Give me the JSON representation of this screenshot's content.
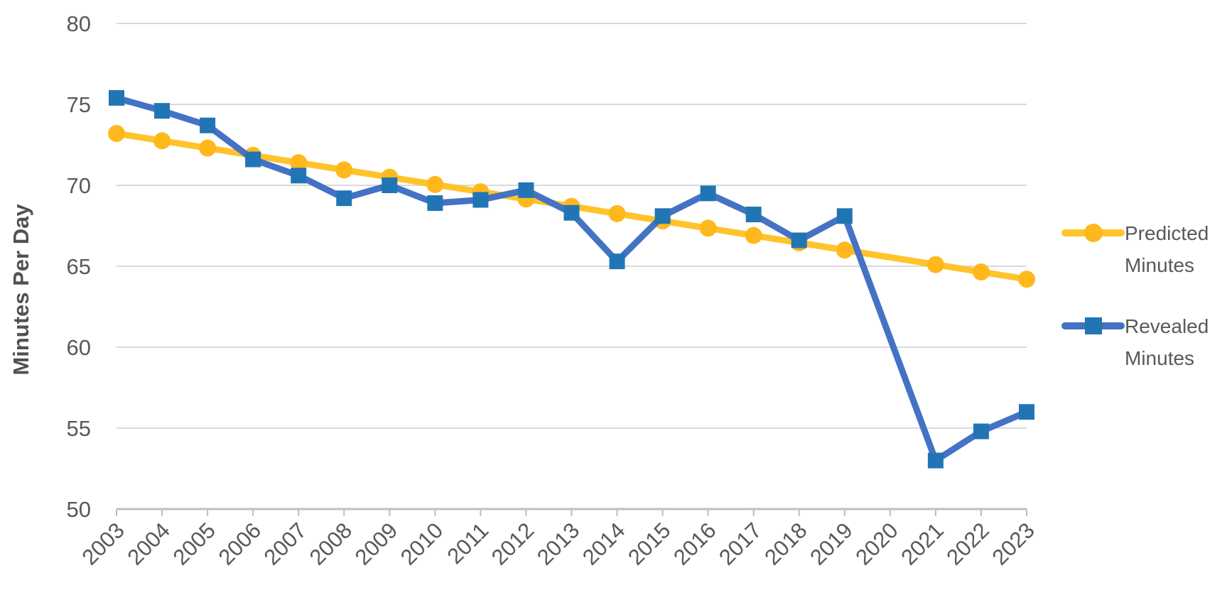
{
  "page": {
    "background": "#ffffff"
  },
  "chart_data": {
    "type": "line",
    "title": "",
    "xlabel": "",
    "ylabel": "Minutes Per Day",
    "ylim": [
      50,
      80
    ],
    "yticks": [
      50,
      55,
      60,
      65,
      70,
      75,
      80
    ],
    "grid": "horizontal",
    "legend_position": "right",
    "categories": [
      "2003",
      "2004",
      "2005",
      "2006",
      "2007",
      "2008",
      "2009",
      "2010",
      "2011",
      "2012",
      "2013",
      "2014",
      "2015",
      "2016",
      "2017",
      "2018",
      "2019",
      "2020",
      "2021",
      "2022",
      "2023"
    ],
    "series": [
      {
        "name": "Predicted Minutes",
        "legend_lines": [
          "Predicted",
          "Minutes"
        ],
        "marker": "circle",
        "line_color": "#FFC42B",
        "marker_color": "#FFB81C",
        "values": [
          73.2,
          72.75,
          72.3,
          71.85,
          71.4,
          70.95,
          70.5,
          70.05,
          69.6,
          69.15,
          68.7,
          68.25,
          67.8,
          67.35,
          66.9,
          66.45,
          66.0,
          null,
          65.1,
          64.65,
          64.2
        ]
      },
      {
        "name": "Revealed Minutes",
        "legend_lines": [
          "Revealed",
          "Minutes"
        ],
        "marker": "square",
        "line_color": "#4472C4",
        "marker_color": "#2175B4",
        "values": [
          75.4,
          74.6,
          73.7,
          71.6,
          70.6,
          69.2,
          70.0,
          68.9,
          69.1,
          69.7,
          68.3,
          65.3,
          68.1,
          69.5,
          68.2,
          66.6,
          68.1,
          null,
          53.0,
          54.8,
          56.0
        ]
      }
    ],
    "colors": {
      "gridline": "#D9D9D9",
      "axis_line": "#BFBFBF",
      "tick_label": "#595959",
      "axis_title": "#515151",
      "legend_text": "#595959"
    }
  }
}
